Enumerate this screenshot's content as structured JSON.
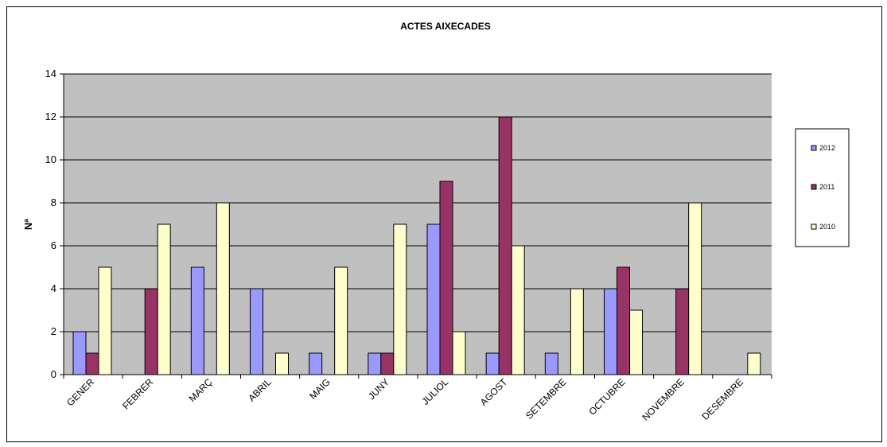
{
  "chart_data": {
    "type": "bar",
    "title": "ACTES AIXECADES",
    "xlabel": "",
    "ylabel": "Nª",
    "ylim": [
      0,
      14
    ],
    "yticks": [
      0,
      2,
      4,
      6,
      8,
      10,
      12,
      14
    ],
    "grid": true,
    "legend_position": "right",
    "plot_background": "#c0c0c0",
    "categories": [
      "GENER",
      "FEBRER",
      "MARÇ",
      "ABRIL",
      "MAIG",
      "JUNY",
      "JULIOL",
      "AGOST",
      "SETEMBRE",
      "OCTUBRE",
      "NOVEMBRE",
      "DESEMBRE"
    ],
    "series": [
      {
        "name": "2012",
        "color": "#9999ff",
        "values": [
          2,
          0,
          5,
          4,
          1,
          1,
          7,
          1,
          1,
          4,
          0,
          0
        ]
      },
      {
        "name": "2011",
        "color": "#993366",
        "values": [
          1,
          4,
          0,
          0,
          0,
          1,
          9,
          12,
          0,
          5,
          4,
          0
        ]
      },
      {
        "name": "2010",
        "color": "#ffffcc",
        "values": [
          5,
          7,
          8,
          1,
          5,
          7,
          2,
          6,
          4,
          3,
          8,
          1
        ]
      }
    ]
  }
}
